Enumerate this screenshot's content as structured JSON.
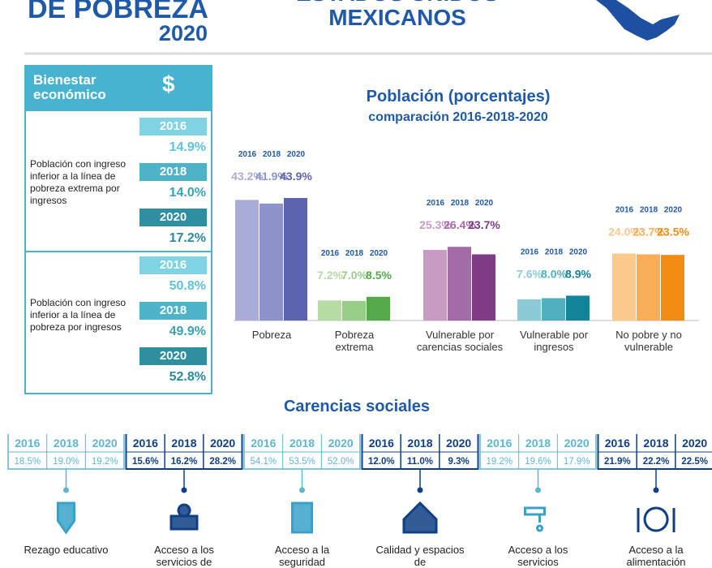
{
  "header": {
    "title": "DE POBREZA",
    "year": "2020",
    "country_top": "ESTADOS UNIDOS",
    "country": "MEXICANOS"
  },
  "sidebar": {
    "title": "Bienestar económico",
    "icon": "$",
    "groups": [
      {
        "label": "Población con ingreso inferior a la línea de pobreza extrema por ingresos",
        "rows": [
          {
            "year": "2016",
            "value": "14.9%"
          },
          {
            "year": "2018",
            "value": "14.0%"
          },
          {
            "year": "2020",
            "value": "17.2%"
          }
        ]
      },
      {
        "label": "Población con ingreso inferior a la línea de pobreza por ingresos",
        "rows": [
          {
            "year": "2016",
            "value": "50.8%"
          },
          {
            "year": "2018",
            "value": "49.9%"
          },
          {
            "year": "2020",
            "value": "52.8%"
          }
        ]
      }
    ]
  },
  "chart_data": {
    "type": "bar",
    "title": "Población (porcentajes)",
    "subtitle": "comparación 2016-2018-2020",
    "categories": [
      "Pobreza",
      "Pobreza extrema",
      "Vulnerable por carencias sociales",
      "Vulnerable por ingresos",
      "No pobre y no vulnerable"
    ],
    "series": [
      {
        "name": "2016",
        "colors": [
          "#a9acd6",
          "#b7dba5",
          "#c79bc4",
          "#8ccbd6",
          "#fcc98c"
        ],
        "values": [
          43.2,
          7.2,
          25.3,
          7.6,
          24.0
        ],
        "value_labels": [
          "43.2%",
          "7.2%",
          "25.3%",
          "7.6%",
          "24.0%"
        ]
      },
      {
        "name": "2018",
        "colors": [
          "#8e93cc",
          "#97cd87",
          "#a56ba8",
          "#4fb0c0",
          "#fbae57"
        ],
        "values": [
          41.9,
          7.0,
          26.4,
          8.0,
          23.7
        ],
        "value_labels": [
          "41.9%",
          "7.0%",
          "26.4%",
          "8.0%",
          "23.7%"
        ]
      },
      {
        "name": "2020",
        "colors": [
          "#5c64b0",
          "#55a94a",
          "#7d3c85",
          "#13849a",
          "#f18d12"
        ],
        "values": [
          43.9,
          8.5,
          23.7,
          8.9,
          23.5
        ],
        "value_labels": [
          "43.9%",
          "8.5%",
          "23.7%",
          "8.9%",
          "23.5%"
        ]
      }
    ]
  },
  "carencias": {
    "title": "Carencias sociales",
    "items": [
      {
        "years": [
          "2016",
          "2018",
          "2020"
        ],
        "values": [
          "18.5%",
          "19.0%",
          "19.2%"
        ],
        "label": "Rezago educativo"
      },
      {
        "years": [
          "2016",
          "2018",
          "2020"
        ],
        "values": [
          "15.6%",
          "16.2%",
          "28.2%"
        ],
        "label": "Acceso a los servicios de"
      },
      {
        "years": [
          "2016",
          "2018",
          "2020"
        ],
        "values": [
          "54.1%",
          "53.5%",
          "52.0%"
        ],
        "label": "Acceso a la seguridad"
      },
      {
        "years": [
          "2016",
          "2018",
          "2020"
        ],
        "values": [
          "12.0%",
          "11.0%",
          "9.3%"
        ],
        "label": "Calidad y espacios de"
      },
      {
        "years": [
          "2016",
          "2018",
          "2020"
        ],
        "values": [
          "19.2%",
          "19.6%",
          "17.9%"
        ],
        "label": "Acceso a los servicios"
      },
      {
        "years": [
          "2016",
          "2018",
          "2020"
        ],
        "values": [
          "21.9%",
          "22.2%",
          "22.5%"
        ],
        "label": "Acceso a la alimentación"
      }
    ]
  }
}
